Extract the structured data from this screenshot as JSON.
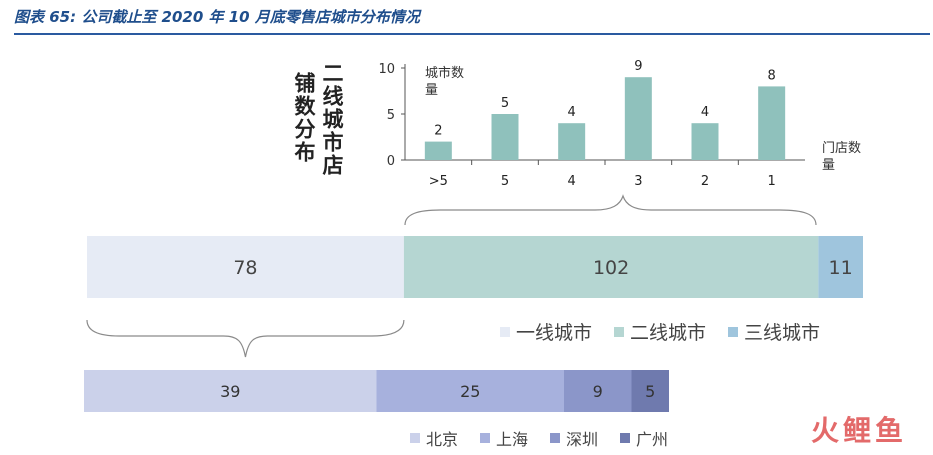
{
  "header": {
    "title": "图表 65: 公司截止至 2020 年 10 月底零售店城市分布情况"
  },
  "side_label": {
    "col1": "铺数分布",
    "col2": "二线城市店"
  },
  "labels": {
    "y_axis": "城市数量",
    "x_axis": "门店数量"
  },
  "logo": "火鲤鱼",
  "colors": {
    "tier1": "#e6ebf5",
    "tier2": "#b5d6d2",
    "tier3": "#9fc5dd",
    "bar": "#8fc1bc",
    "beijing": "#cbd1ea",
    "shanghai": "#a7b1dd",
    "shenzhen": "#8b96c9",
    "guangzhou": "#6f7aae",
    "title": "#1f4e8c"
  },
  "chart_data": [
    {
      "type": "bar",
      "title": "",
      "ylabel": "城市数量",
      "xlabel": "门店数量",
      "categories": [
        ">5",
        "5",
        "4",
        "3",
        "2",
        "1"
      ],
      "values": [
        2,
        5,
        4,
        9,
        4,
        8
      ],
      "ylim": [
        0,
        10
      ],
      "yticks": [
        "0",
        "5",
        "10"
      ]
    },
    {
      "type": "stacked-bar",
      "series": [
        {
          "name": "一线城市",
          "value": 78
        },
        {
          "name": "二线城市",
          "value": 102
        },
        {
          "name": "三线城市",
          "value": 11
        }
      ],
      "legend_position": "bottom-right"
    },
    {
      "type": "stacked-bar",
      "series": [
        {
          "name": "北京",
          "value": 39
        },
        {
          "name": "上海",
          "value": 25
        },
        {
          "name": "深圳",
          "value": 9
        },
        {
          "name": "广州",
          "value": 5
        }
      ],
      "legend_position": "bottom-center"
    }
  ]
}
